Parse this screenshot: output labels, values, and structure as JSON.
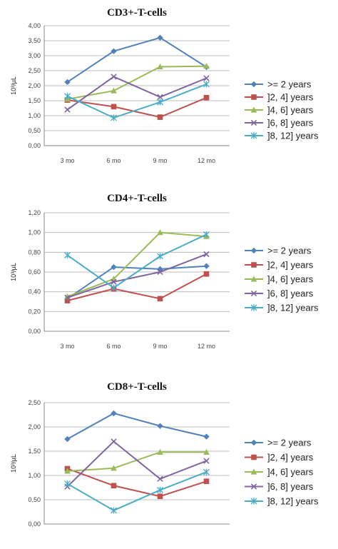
{
  "chart_data": [
    {
      "type": "line",
      "title": "CD3+-T-cells",
      "ylabel": "10³/µL",
      "categories": [
        "3 mo",
        "6 mo",
        "9 mo",
        "12 mo"
      ],
      "ylim": [
        0,
        4
      ],
      "yticks": [
        "0,00",
        "0,50",
        "1,00",
        "1,50",
        "2,00",
        "2,50",
        "3,00",
        "3,50",
        "4,00"
      ],
      "grid": true,
      "legend": "right",
      "series": [
        {
          "name": ">= 2 years",
          "color": "#4F81BD",
          "marker": "diamond",
          "values": [
            2.12,
            3.15,
            3.6,
            2.62
          ]
        },
        {
          "name": "]2, 4] years",
          "color": "#C0504D",
          "marker": "square",
          "values": [
            1.52,
            1.3,
            0.95,
            1.6
          ]
        },
        {
          "name": "]4, 6] years",
          "color": "#9BBB59",
          "marker": "triangle",
          "values": [
            1.55,
            1.83,
            2.63,
            2.65
          ]
        },
        {
          "name": "]6, 8] years",
          "color": "#8064A2",
          "marker": "x",
          "values": [
            1.2,
            2.3,
            1.62,
            2.25
          ]
        },
        {
          "name": "]8, 12] years",
          "color": "#4BACC6",
          "marker": "star",
          "values": [
            1.65,
            0.93,
            1.45,
            2.05
          ]
        }
      ]
    },
    {
      "type": "line",
      "title": "CD4+-T-cells",
      "ylabel": "10³/µL",
      "categories": [
        "3 mo",
        "6 mo",
        "9 mo",
        "12 mo"
      ],
      "ylim": [
        0,
        1.2
      ],
      "yticks": [
        "0,00",
        "0,20",
        "0,40",
        "0,60",
        "0,80",
        "1,00",
        "1,20"
      ],
      "grid": true,
      "legend": "right",
      "series": [
        {
          "name": ">= 2 years",
          "color": "#4F81BD",
          "marker": "diamond",
          "values": [
            0.33,
            0.65,
            0.63,
            0.66
          ]
        },
        {
          "name": "]2, 4] years",
          "color": "#C0504D",
          "marker": "square",
          "values": [
            0.31,
            0.43,
            0.33,
            0.58
          ]
        },
        {
          "name": "]4, 6] years",
          "color": "#9BBB59",
          "marker": "triangle",
          "values": [
            0.35,
            0.53,
            1.0,
            0.96
          ]
        },
        {
          "name": "]6, 8] years",
          "color": "#8064A2",
          "marker": "x",
          "values": [
            0.34,
            0.5,
            0.6,
            0.78
          ]
        },
        {
          "name": "]8, 12] years",
          "color": "#4BACC6",
          "marker": "star",
          "values": [
            0.77,
            0.44,
            0.76,
            0.98
          ]
        }
      ]
    },
    {
      "type": "line",
      "title": "CD8+-T-cells",
      "ylabel": "10³/µL",
      "categories": [
        "",
        "",
        "",
        ""
      ],
      "ylim": [
        0,
        2.5
      ],
      "yticks": [
        "0,00",
        "0,50",
        "1,00",
        "1,50",
        "2,00",
        "2,50"
      ],
      "grid": true,
      "legend": "right",
      "series": [
        {
          "name": ">= 2 years",
          "color": "#4F81BD",
          "marker": "diamond",
          "values": [
            1.75,
            2.28,
            2.02,
            1.8
          ]
        },
        {
          "name": "]2, 4] years",
          "color": "#C0504D",
          "marker": "square",
          "values": [
            1.14,
            0.79,
            0.57,
            0.88
          ]
        },
        {
          "name": "]4, 6] years",
          "color": "#9BBB59",
          "marker": "triangle",
          "values": [
            1.09,
            1.15,
            1.48,
            1.48
          ]
        },
        {
          "name": "]6, 8] years",
          "color": "#8064A2",
          "marker": "x",
          "values": [
            0.77,
            1.7,
            0.93,
            1.3
          ]
        },
        {
          "name": "]8, 12] years",
          "color": "#4BACC6",
          "marker": "star",
          "values": [
            0.83,
            0.28,
            0.7,
            1.07
          ]
        }
      ]
    }
  ]
}
